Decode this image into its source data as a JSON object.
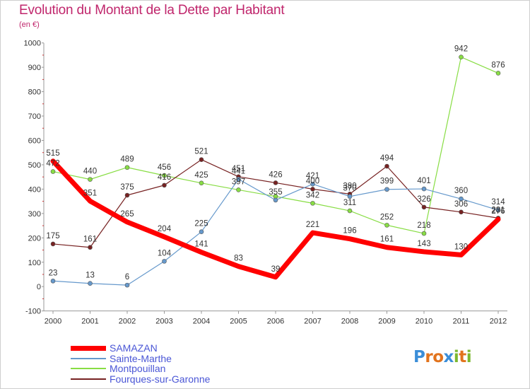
{
  "header": {
    "title": "Evolution du Montant de la Dette par Habitant",
    "subtitle": "(en €)"
  },
  "chart_data": {
    "type": "line",
    "title": "Evolution du Montant de la Dette par Habitant",
    "ylabel": "(en €)",
    "xlabel": "",
    "x": [
      "2000",
      "2001",
      "2002",
      "2003",
      "2004",
      "2005",
      "2006",
      "2007",
      "2008",
      "2009",
      "2010",
      "2011",
      "2012"
    ],
    "ylim": [
      -100,
      1000
    ],
    "yticks": [
      -100,
      0,
      100,
      200,
      300,
      400,
      500,
      600,
      700,
      800,
      900,
      1000
    ],
    "grid": false,
    "legend_position": "bottom-left",
    "series": [
      {
        "name": "SAMAZAN",
        "color": "#ff0000",
        "values": [
          515,
          351,
          265,
          204,
          141,
          83,
          39,
          221,
          196,
          161,
          143,
          130,
          276
        ]
      },
      {
        "name": "Sainte-Marthe",
        "color": "#6699cc",
        "values": [
          23,
          13,
          6,
          104,
          225,
          441,
          355,
          421,
          370,
          399,
          401,
          360,
          314
        ]
      },
      {
        "name": "Montpouillan",
        "color": "#88dd44",
        "values": [
          472,
          440,
          489,
          456,
          425,
          397,
          370,
          342,
          311,
          252,
          218,
          942,
          876
        ]
      },
      {
        "name": "Fourques-sur-Garonne",
        "color": "#772222",
        "values": [
          175,
          161,
          375,
          416,
          521,
          451,
          426,
          400,
          380,
          494,
          326,
          306,
          281
        ]
      }
    ],
    "data_labels": [
      {
        "series": 0,
        "labels": [
          "515",
          "351",
          "265",
          "204",
          "141",
          "83",
          "39",
          "221",
          "196",
          "161",
          "143",
          "130",
          "276"
        ]
      },
      {
        "series": 1,
        "labels": [
          "23",
          "13",
          "6",
          "104",
          "225",
          "441",
          "355",
          "421",
          "370",
          "399",
          "401",
          "360",
          "314"
        ]
      },
      {
        "series": 2,
        "labels": [
          "472",
          "440",
          "489",
          "456",
          "425",
          "397",
          "",
          "342",
          "311",
          "252",
          "218",
          "942",
          "876"
        ]
      },
      {
        "series": 3,
        "labels": [
          "175",
          "161",
          "375",
          "416",
          "521",
          "451",
          "426",
          "400",
          "380",
          "494",
          "326",
          "306",
          "281"
        ]
      }
    ]
  },
  "logo": {
    "letters": [
      "P",
      "r",
      "o",
      "x",
      "i",
      "t",
      "i"
    ],
    "colors": [
      "#3b8ed8",
      "#e2731c",
      "#e2731c",
      "#3b8ed8",
      "#7cb82f",
      "#e2731c",
      "#7cb82f"
    ]
  }
}
